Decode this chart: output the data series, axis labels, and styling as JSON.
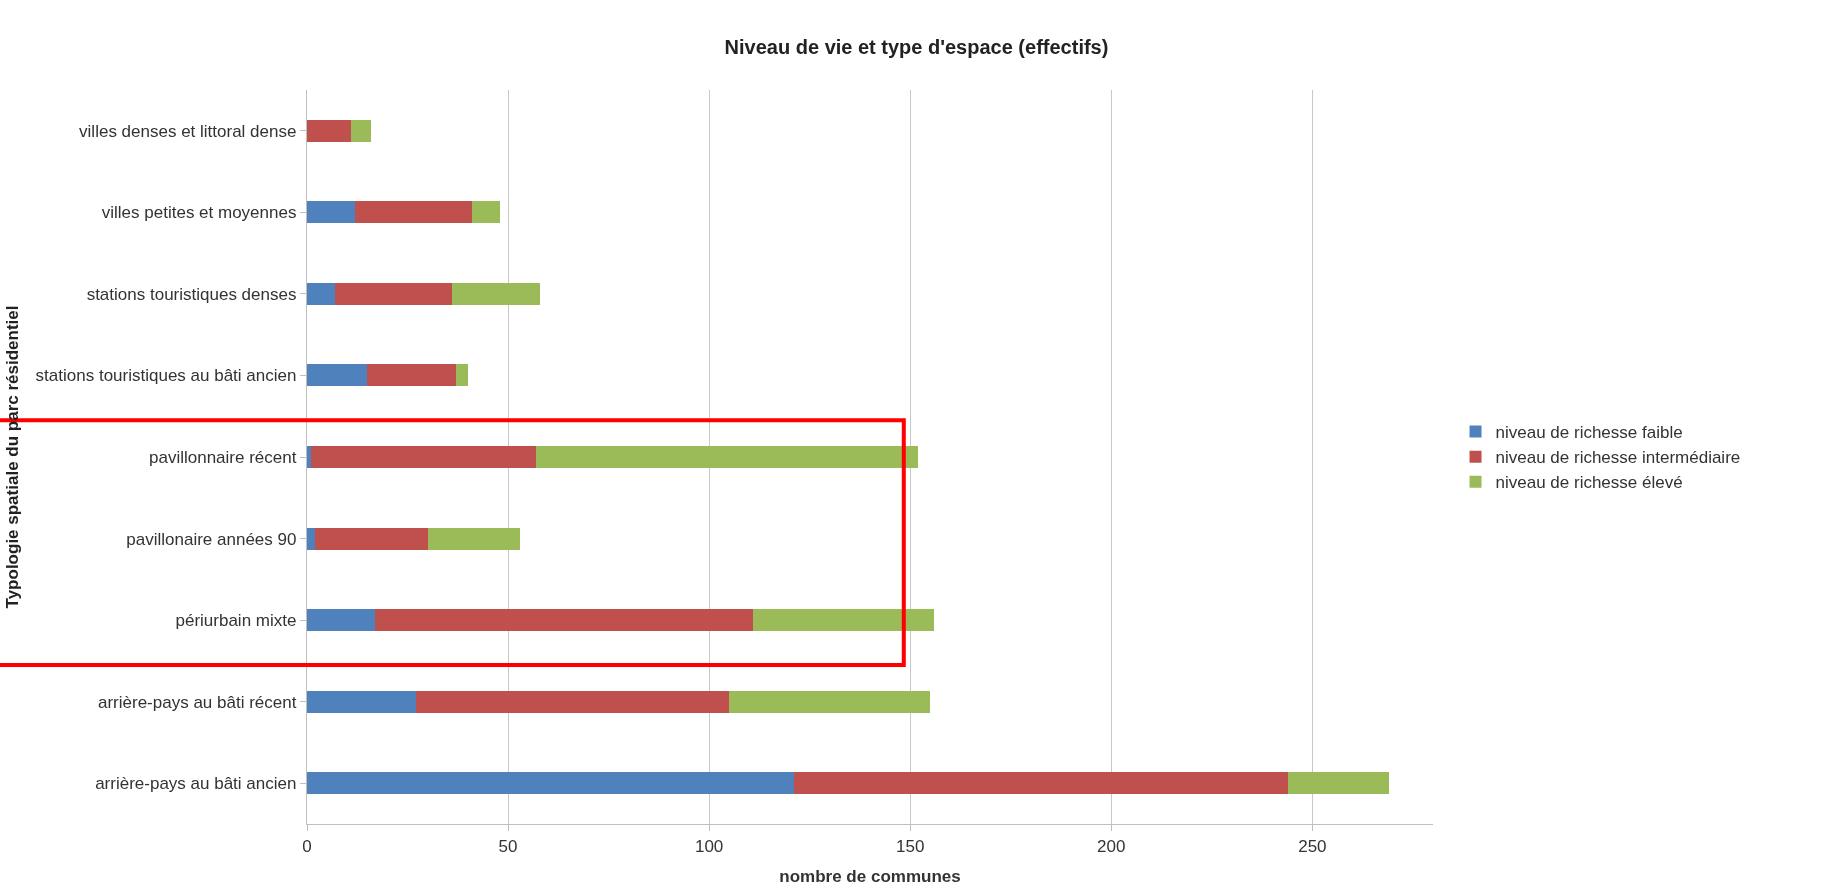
{
  "chart_data": {
    "type": "bar",
    "orientation": "horizontal",
    "stacked": true,
    "title": "Niveau de vie et type d'espace (effectifs)",
    "xlabel": "nombre de communes",
    "ylabel": "Typologie spatiale du parc résidentiel",
    "categories": [
      "villes denses et littoral dense",
      "villes petites et moyennes",
      "stations touristiques denses",
      "stations touristiques au bâti ancien",
      "pavillonnaire récent",
      "pavillonaire années 90",
      "périurbain mixte",
      "arrière-pays au bâti récent",
      "arrière-pays au bâti ancien"
    ],
    "series": [
      {
        "name": "niveau de richesse faible",
        "color": "#4f81bd",
        "values": [
          0,
          12,
          7,
          15,
          1,
          2,
          17,
          27,
          121
        ]
      },
      {
        "name": "niveau de richesse intermédiaire",
        "color": "#c0504d",
        "values": [
          11,
          29,
          29,
          22,
          56,
          28,
          94,
          78,
          123
        ]
      },
      {
        "name": "niveau de richesse élevé",
        "color": "#9bbb59",
        "values": [
          5,
          7,
          22,
          3,
          95,
          23,
          45,
          50,
          25
        ]
      }
    ],
    "xlim": [
      0,
      280
    ],
    "xticks": [
      0,
      50,
      100,
      150,
      200,
      250
    ],
    "grid": "x",
    "legend": "right"
  }
}
